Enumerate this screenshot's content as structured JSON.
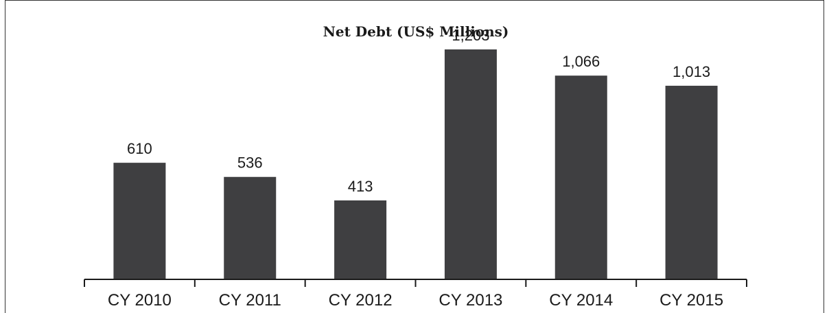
{
  "chart_data": {
    "type": "bar",
    "title": "Net Debt (US$ Millions)",
    "xlabel": "",
    "ylabel": "",
    "categories": [
      "CY 2010",
      "CY 2011",
      "CY 2012",
      "CY 2013",
      "CY 2014",
      "CY 2015"
    ],
    "values": [
      610,
      536,
      413,
      1203,
      1066,
      1013
    ],
    "value_labels": [
      "610",
      "536",
      "413",
      "1,203",
      "1,066",
      "1,013"
    ],
    "ylim": [
      0,
      1300
    ],
    "grid": false,
    "legend": "none",
    "bar_color": "#3f3f41"
  }
}
